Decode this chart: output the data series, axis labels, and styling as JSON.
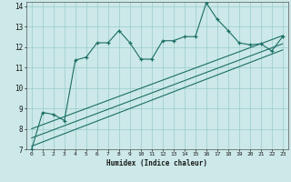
{
  "xlabel": "Humidex (Indice chaleur)",
  "bg_color": "#cce8e8",
  "line_color": "#1a6e64",
  "grid_color": "#99cccc",
  "xlim": [
    -0.5,
    23.5
  ],
  "ylim": [
    7,
    14.2
  ],
  "xticks": [
    0,
    1,
    2,
    3,
    4,
    5,
    6,
    7,
    8,
    9,
    10,
    11,
    12,
    13,
    14,
    15,
    16,
    17,
    18,
    19,
    20,
    21,
    22,
    23
  ],
  "yticks": [
    7,
    8,
    9,
    10,
    11,
    12,
    13,
    14
  ],
  "line1_x": [
    0,
    1,
    2,
    3,
    4,
    5,
    6,
    7,
    8,
    9,
    10,
    11,
    12,
    13,
    14,
    15,
    16,
    17,
    18,
    19,
    20,
    21,
    22,
    23
  ],
  "line1_y": [
    7.0,
    8.8,
    8.7,
    8.4,
    11.35,
    11.5,
    12.2,
    12.2,
    12.8,
    12.2,
    11.4,
    11.4,
    12.3,
    12.3,
    12.5,
    12.5,
    14.15,
    13.35,
    12.8,
    12.2,
    12.1,
    12.15,
    11.8,
    12.5
  ],
  "line2_x": [
    0,
    23
  ],
  "line2_y": [
    7.15,
    11.85
  ],
  "line3_x": [
    0,
    23
  ],
  "line3_y": [
    7.55,
    12.15
  ],
  "line4_x": [
    0,
    23
  ],
  "line4_y": [
    8.0,
    12.55
  ]
}
